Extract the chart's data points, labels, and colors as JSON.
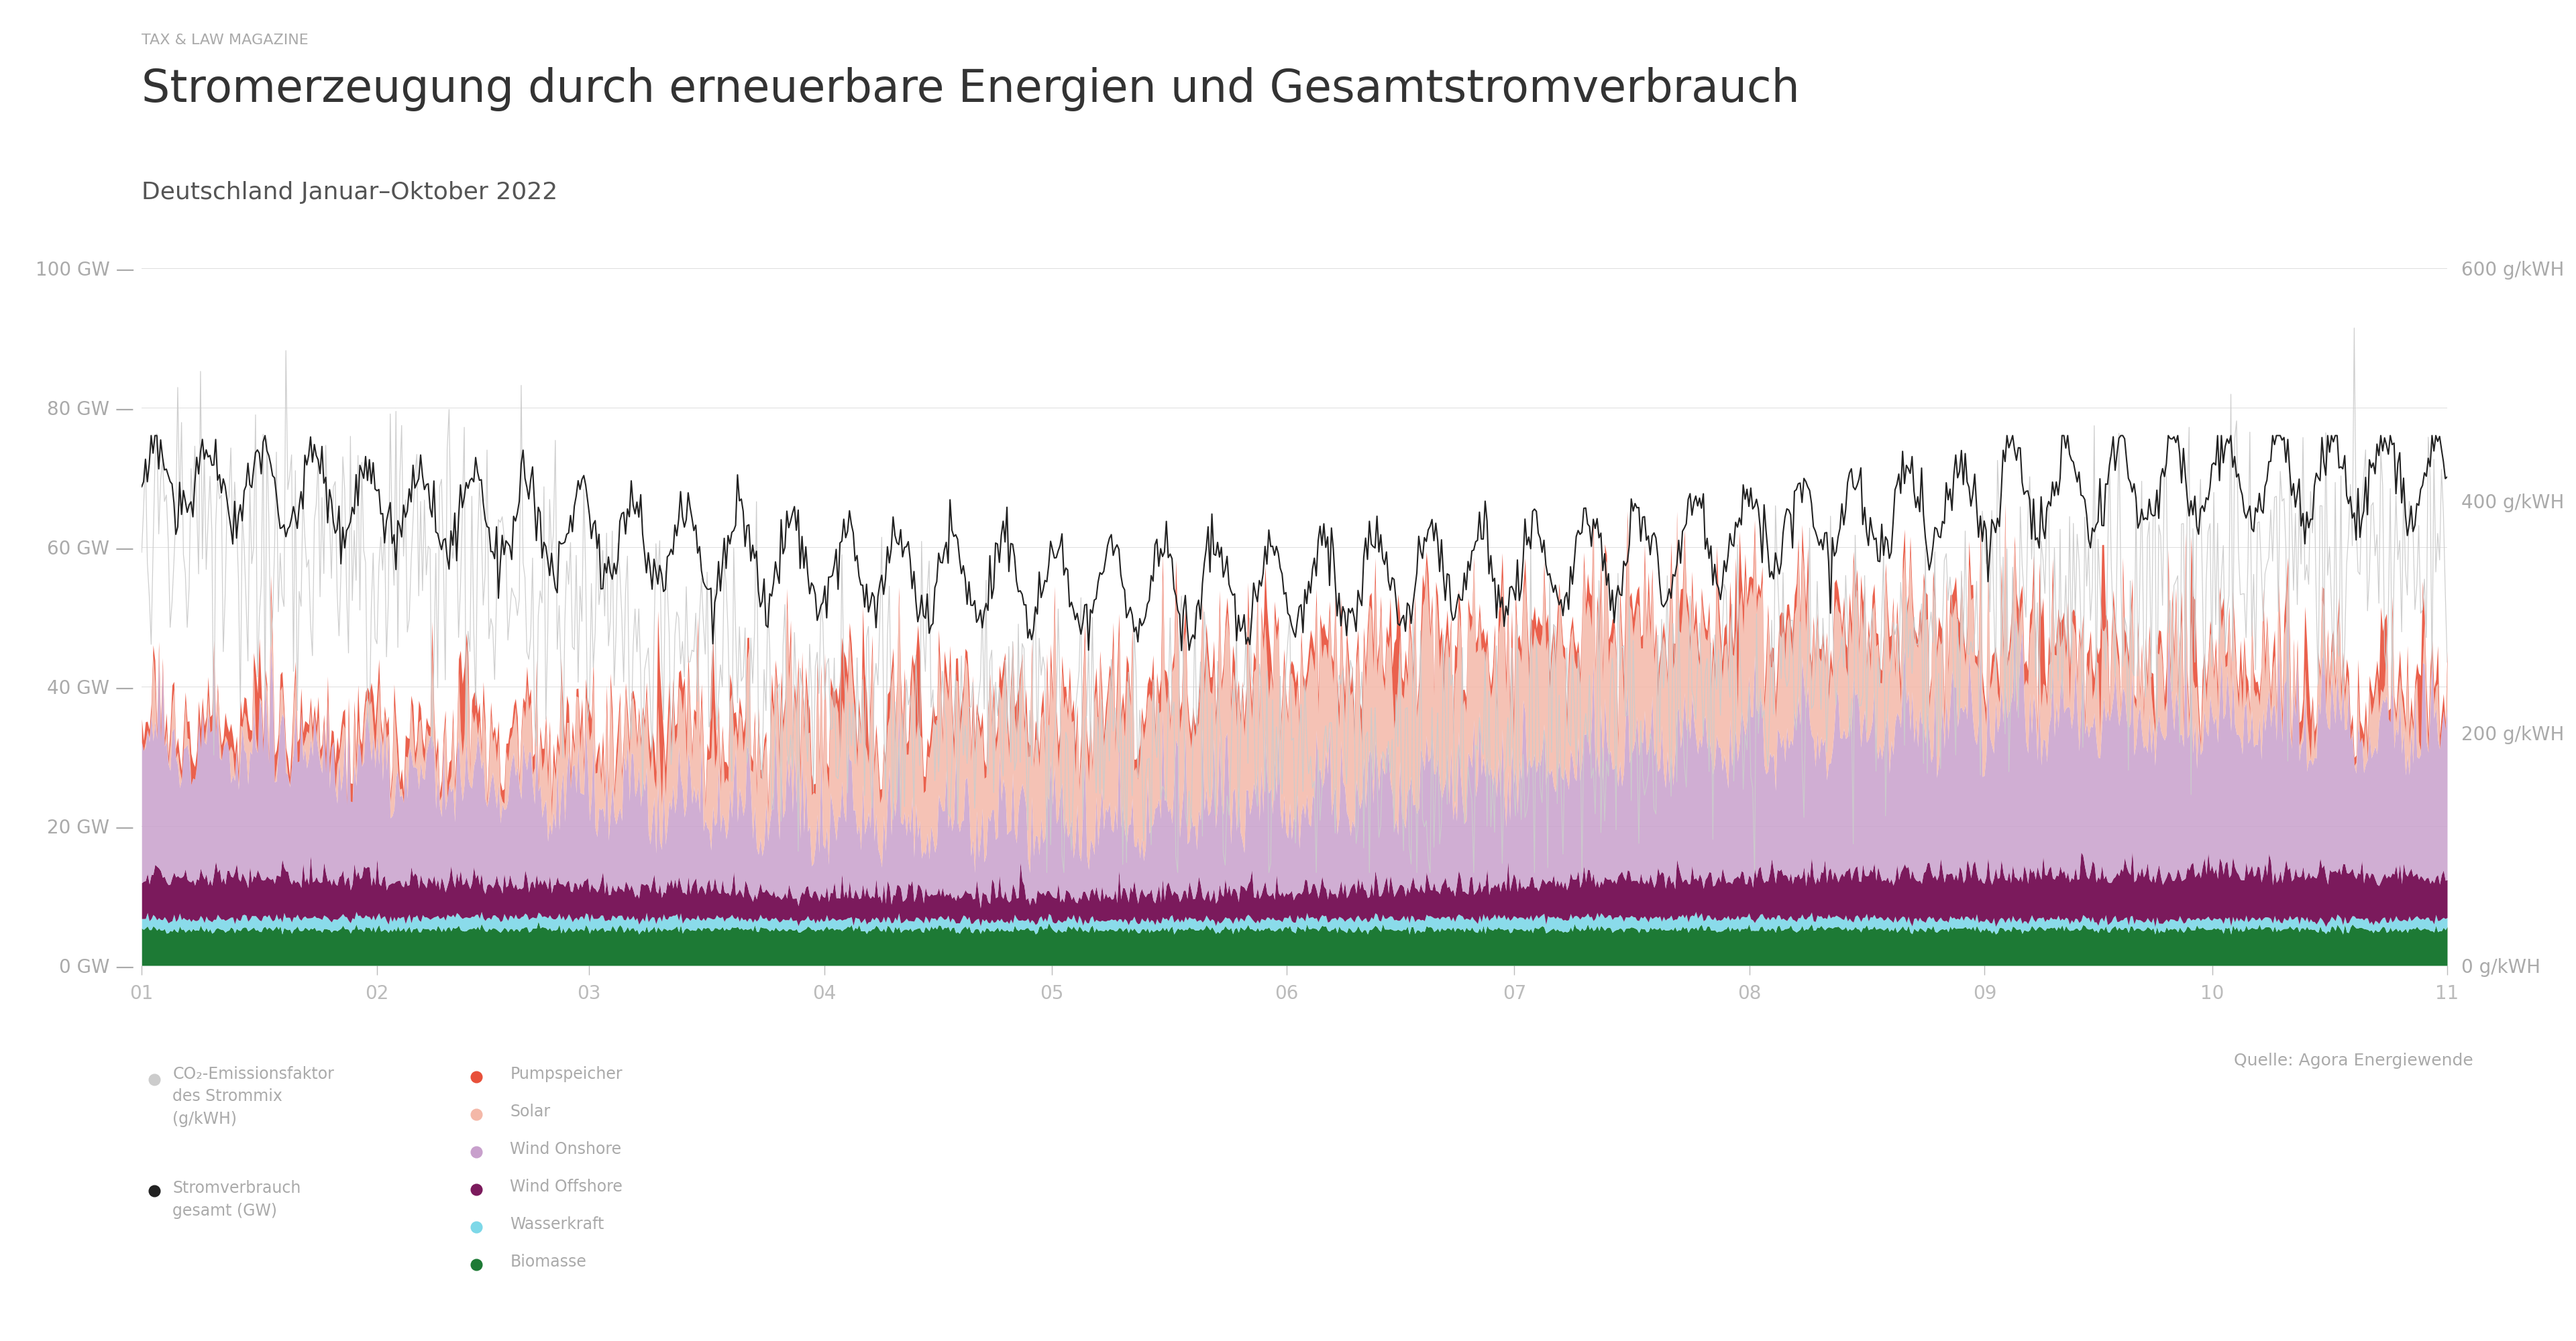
{
  "title": "Stromerzeugung durch erneuerbare Energien und Gesamtstromverbrauch",
  "subtitle": "TAX & LAW MAGAZINE",
  "subtitle2": "Deutschland Januar–Oktober 2022",
  "source": "Quelle: Agora Energiewende",
  "background_color": "#ffffff",
  "text_color": "#aaaaaa",
  "title_color": "#333333",
  "ytick_labels_left": [
    "0 GW —",
    "20 GW —",
    "40 GW —",
    "60 GW —",
    "80 GW —",
    "100 GW —"
  ],
  "ytick_labels_right": [
    "0 g/kWH",
    "200 g/kWH",
    "400 g/kWH",
    "600 g/kWH"
  ],
  "xtick_labels": [
    "01",
    "02",
    "03",
    "04",
    "05",
    "06",
    "07",
    "08",
    "09",
    "10",
    "11"
  ],
  "colors": {
    "biomasse": "#1d7a35",
    "wasserkraft": "#7dd8e8",
    "wind_offshore": "#7b1a5c",
    "wind_onshore": "#c8a0cc",
    "solar": "#f4b8a8",
    "pumpspeicher": "#e8503a",
    "consumption": "#222222",
    "co2": "#cccccc"
  }
}
